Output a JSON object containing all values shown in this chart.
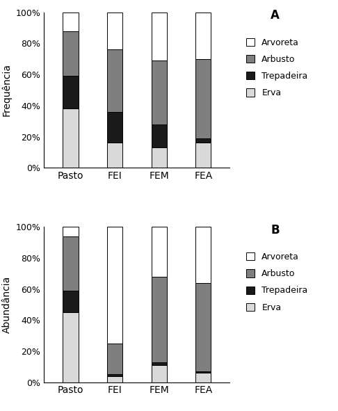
{
  "categories": [
    "Pasto",
    "FEI",
    "FEM",
    "FEA"
  ],
  "chart_A": {
    "ylabel": "Frequência",
    "label": "A",
    "Erva": [
      38,
      16,
      13,
      16
    ],
    "Trepadeira": [
      21,
      20,
      15,
      3
    ],
    "Arbusto": [
      29,
      40,
      41,
      51
    ],
    "Arvoreta": [
      12,
      24,
      31,
      30
    ]
  },
  "chart_B": {
    "ylabel": "Abundância",
    "label": "B",
    "Erva": [
      45,
      4,
      11,
      6
    ],
    "Trepadeira": [
      14,
      1,
      2,
      1
    ],
    "Arbusto": [
      35,
      20,
      55,
      57
    ],
    "Arvoreta": [
      6,
      75,
      32,
      36
    ]
  },
  "colors": {
    "Erva": "#d9d9d9",
    "Trepadeira": "#1a1a1a",
    "Arbusto": "#7f7f7f",
    "Arvoreta": "#ffffff"
  },
  "edge_color": "#000000",
  "bar_width": 0.35,
  "legend_labels": [
    "Arvoreta",
    "Arbusto",
    "Trepadeira",
    "Erva"
  ],
  "yticks": [
    0,
    20,
    40,
    60,
    80,
    100
  ],
  "yticklabels": [
    "0%",
    "20%",
    "40%",
    "60%",
    "80%",
    "100%"
  ]
}
